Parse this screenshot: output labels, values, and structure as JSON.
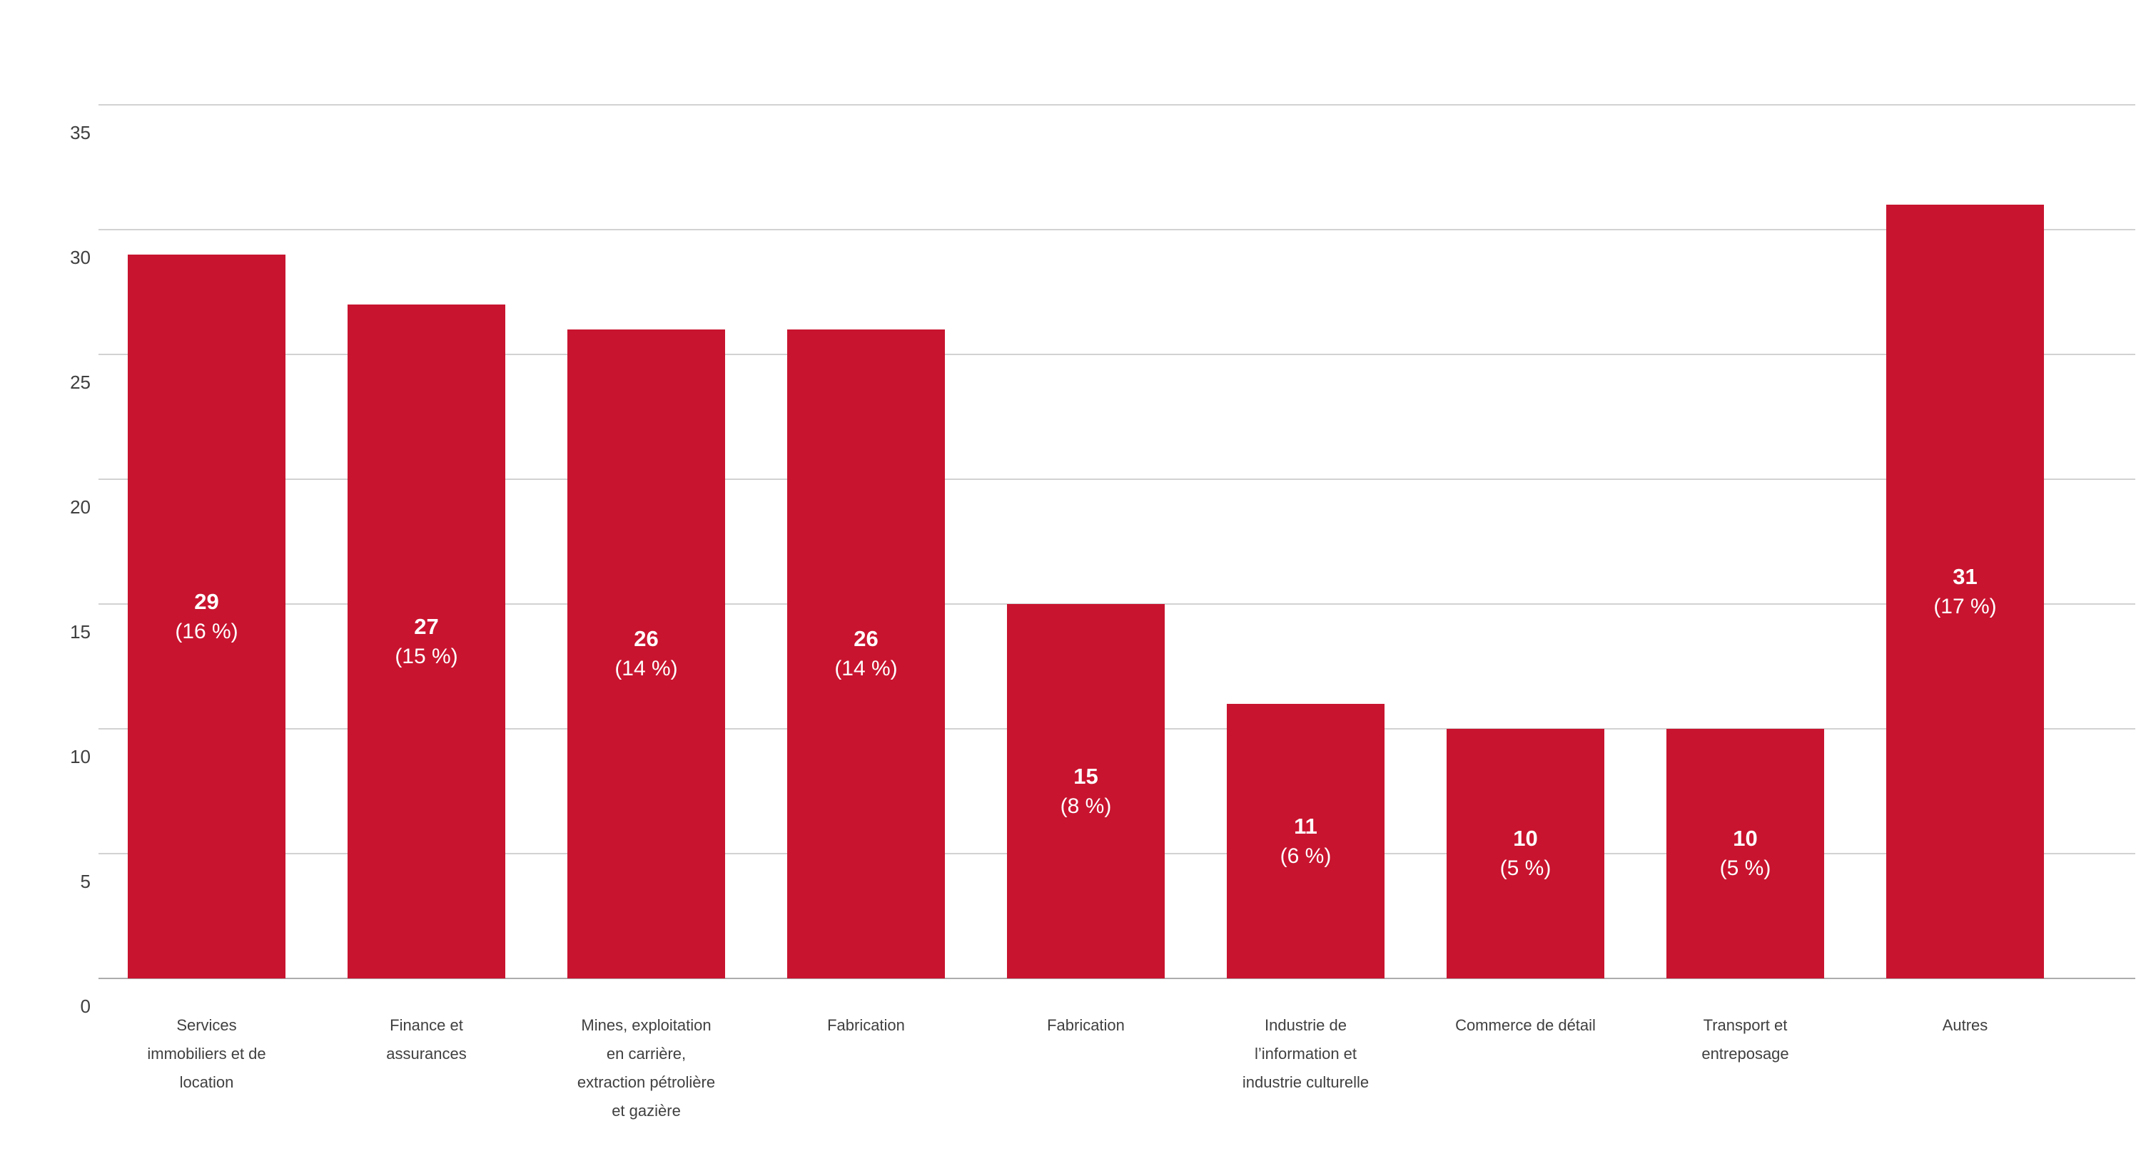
{
  "chart_data": {
    "type": "bar",
    "title": "",
    "categories": [
      [
        "Services",
        "immobiliers et de",
        "location"
      ],
      [
        "Finance et",
        "assurances"
      ],
      [
        "Mines, exploitation",
        "en carrière,",
        "extraction pétrolière",
        "et gazière"
      ],
      [
        "Fabrication"
      ],
      [
        "Fabrication"
      ],
      [
        "Industrie de",
        "l’information et",
        "industrie culturelle"
      ],
      [
        "Commerce de détail"
      ],
      [
        "Transport et",
        "entreposage"
      ],
      [
        "Autres"
      ]
    ],
    "series": [
      {
        "name": "",
        "values": [
          29,
          27,
          26,
          26,
          15,
          11,
          10,
          10,
          31
        ]
      }
    ],
    "percentages": [
      16,
      15,
      14,
      14,
      8,
      6,
      5,
      5,
      17
    ],
    "bar_labels": [
      {
        "value": "29",
        "percent": "(16 %)"
      },
      {
        "value": "27",
        "percent": "(15 %)"
      },
      {
        "value": "26",
        "percent": "(14 %)"
      },
      {
        "value": "26",
        "percent": "(14 %)"
      },
      {
        "value": "15",
        "percent": "(8 %)"
      },
      {
        "value": "11",
        "percent": "(6 %)"
      },
      {
        "value": "10",
        "percent": "(5 %)"
      },
      {
        "value": "10",
        "percent": "(5 %)"
      },
      {
        "value": "31",
        "percent": "(17 %)"
      }
    ],
    "yticks": [
      "0",
      "5",
      "10",
      "15",
      "20",
      "25",
      "30",
      "35"
    ],
    "ylim": [
      0,
      35
    ],
    "xlabel": "",
    "ylabel": "",
    "grid": true,
    "legend_position": "none",
    "colors": {
      "bar": "#c8142f",
      "gridline": "#d2d2d2",
      "baseline": "#acacac",
      "axis_text": "#404040",
      "bar_label_text": "#ffffff"
    }
  }
}
